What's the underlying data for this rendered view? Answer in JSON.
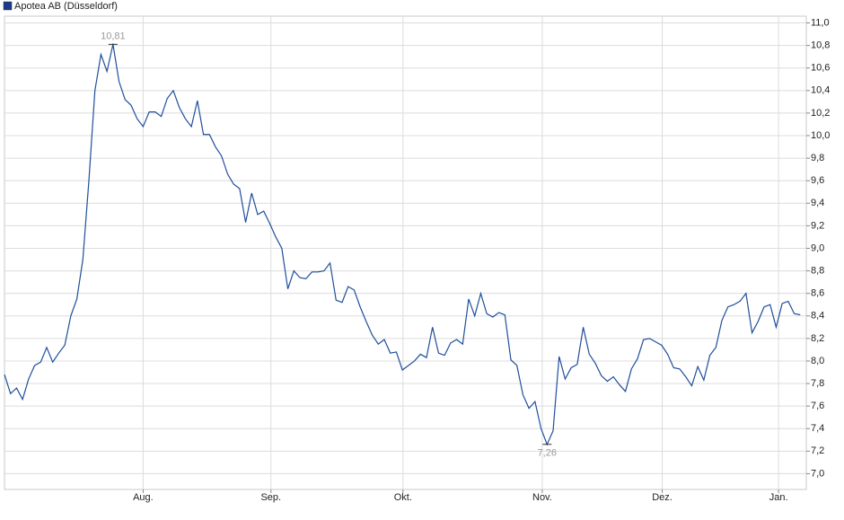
{
  "chart_data": {
    "type": "line",
    "series": [
      {
        "name": "Apotea AB (Düsseldorf)",
        "color": "#1f4e9c",
        "values": [
          7.88,
          7.71,
          7.76,
          7.66,
          7.84,
          7.96,
          7.99,
          8.12,
          7.99,
          8.07,
          8.14,
          8.4,
          8.55,
          8.9,
          9.6,
          10.4,
          10.72,
          10.57,
          10.81,
          10.48,
          10.32,
          10.27,
          10.15,
          10.08,
          10.21,
          10.21,
          10.17,
          10.33,
          10.4,
          10.25,
          10.15,
          10.08,
          10.31,
          10.01,
          10.01,
          9.9,
          9.82,
          9.66,
          9.57,
          9.53,
          9.23,
          9.49,
          9.3,
          9.33,
          9.22,
          9.1,
          9.0,
          8.64,
          8.8,
          8.74,
          8.73,
          8.79,
          8.79,
          8.8,
          8.87,
          8.54,
          8.52,
          8.66,
          8.63,
          8.48,
          8.35,
          8.23,
          8.15,
          8.19,
          8.07,
          8.08,
          7.92,
          7.96,
          8.0,
          8.06,
          8.03,
          8.3,
          8.07,
          8.05,
          8.16,
          8.19,
          8.15,
          8.55,
          8.4,
          8.6,
          8.42,
          8.39,
          8.43,
          8.41,
          8.01,
          7.96,
          7.7,
          7.58,
          7.64,
          7.4,
          7.26,
          7.38,
          8.04,
          7.84,
          7.94,
          7.97,
          8.3,
          8.06,
          7.98,
          7.87,
          7.82,
          7.86,
          7.79,
          7.73,
          7.93,
          8.02,
          8.19,
          8.2,
          8.17,
          8.14,
          8.06,
          7.94,
          7.93,
          7.86,
          7.78,
          7.95,
          7.83,
          8.05,
          8.12,
          8.36,
          8.48,
          8.5,
          8.53,
          8.6,
          8.25,
          8.35,
          8.48,
          8.5,
          8.3,
          8.51,
          8.53,
          8.42,
          8.41
        ],
        "value_labels": [
          null,
          null,
          null,
          null,
          null,
          null,
          null,
          null,
          null,
          null,
          null,
          null,
          null,
          null,
          null,
          null,
          null,
          null,
          "10,81",
          null,
          null,
          null,
          null,
          null,
          null,
          null,
          null,
          null,
          null,
          null,
          null,
          null,
          null,
          null,
          null,
          null,
          null,
          null,
          null,
          null,
          null,
          null,
          null,
          null,
          null,
          null,
          null,
          null,
          null,
          null,
          null,
          null,
          null,
          null,
          null,
          null,
          null,
          null,
          null,
          null,
          null,
          null,
          null,
          null,
          null,
          null,
          null,
          null,
          null,
          null,
          null,
          null,
          null,
          null,
          null,
          null,
          null,
          null,
          null,
          null,
          null,
          null,
          null,
          null,
          null,
          null,
          null,
          null,
          null,
          null,
          "7,26",
          null,
          null,
          null,
          null,
          null,
          null,
          null,
          null,
          null,
          null,
          null,
          null,
          null,
          null,
          null,
          null,
          null,
          null,
          null,
          null,
          null,
          null,
          null,
          null,
          null,
          null,
          null,
          null,
          null,
          null,
          null,
          null,
          null,
          null,
          null,
          null,
          null,
          null,
          null,
          null,
          null,
          null
        ]
      }
    ],
    "xlim": [
      0,
      133
    ],
    "xticks": [
      {
        "value": 23.0,
        "label": "Aug."
      },
      {
        "value": 44.2,
        "label": "Sep."
      },
      {
        "value": 66.1,
        "label": "Okt."
      },
      {
        "value": 89.2,
        "label": "Nov."
      },
      {
        "value": 109.1,
        "label": "Dez."
      },
      {
        "value": 128.4,
        "label": "Jan."
      }
    ],
    "ylim": [
      6.86,
      11.06
    ],
    "yticks": [
      {
        "value": 7.0,
        "label": "7,0"
      },
      {
        "value": 7.2,
        "label": "7,2"
      },
      {
        "value": 7.4,
        "label": "7,4"
      },
      {
        "value": 7.6,
        "label": "7,6"
      },
      {
        "value": 7.8,
        "label": "7,8"
      },
      {
        "value": 8.0,
        "label": "8,0"
      },
      {
        "value": 8.2,
        "label": "8,2"
      },
      {
        "value": 8.4,
        "label": "8,4"
      },
      {
        "value": 8.6,
        "label": "8,6"
      },
      {
        "value": 8.8,
        "label": "8,8"
      },
      {
        "value": 9.0,
        "label": "9,0"
      },
      {
        "value": 9.2,
        "label": "9,2"
      },
      {
        "value": 9.4,
        "label": "9,4"
      },
      {
        "value": 9.6,
        "label": "9,6"
      },
      {
        "value": 9.8,
        "label": "9,8"
      },
      {
        "value": 10.0,
        "label": "10,0"
      },
      {
        "value": 10.2,
        "label": "10,2"
      },
      {
        "value": 10.4,
        "label": "10,4"
      },
      {
        "value": 10.6,
        "label": "10,6"
      },
      {
        "value": 10.8,
        "label": "10,8"
      },
      {
        "value": 11.0,
        "label": "11,0"
      }
    ],
    "grid": true,
    "legend": "top-left"
  }
}
